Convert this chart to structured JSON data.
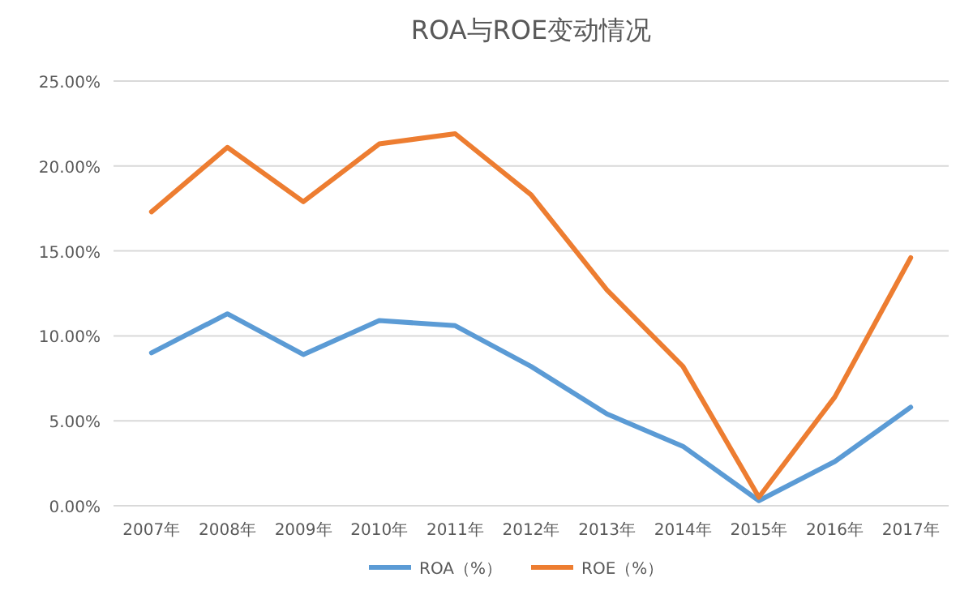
{
  "chart_data": {
    "type": "line",
    "title": "ROA与ROE变动情况",
    "categories": [
      "2007年",
      "2008年",
      "2009年",
      "2010年",
      "2011年",
      "2012年",
      "2013年",
      "2014年",
      "2015年",
      "2016年",
      "2017年"
    ],
    "series": [
      {
        "name": "ROA（%）",
        "color": "#5b9bd5",
        "values": [
          9.0,
          11.3,
          8.9,
          10.9,
          10.6,
          8.2,
          5.4,
          3.5,
          0.3,
          2.6,
          5.8
        ]
      },
      {
        "name": "ROE（%）",
        "color": "#ed7d31",
        "values": [
          17.3,
          21.1,
          17.9,
          21.3,
          21.9,
          18.3,
          12.7,
          8.2,
          0.5,
          6.4,
          14.6
        ]
      }
    ],
    "ylim": [
      0,
      25
    ],
    "yticks": [
      {
        "value": 0,
        "label": "0.00%"
      },
      {
        "value": 5,
        "label": "5.00%"
      },
      {
        "value": 10,
        "label": "10.00%"
      },
      {
        "value": 15,
        "label": "15.00%"
      },
      {
        "value": 20,
        "label": "20.00%"
      },
      {
        "value": 25,
        "label": "25.00%"
      }
    ],
    "grid": "y",
    "legend": "bottom",
    "marker": "none",
    "line_style": "solid"
  }
}
